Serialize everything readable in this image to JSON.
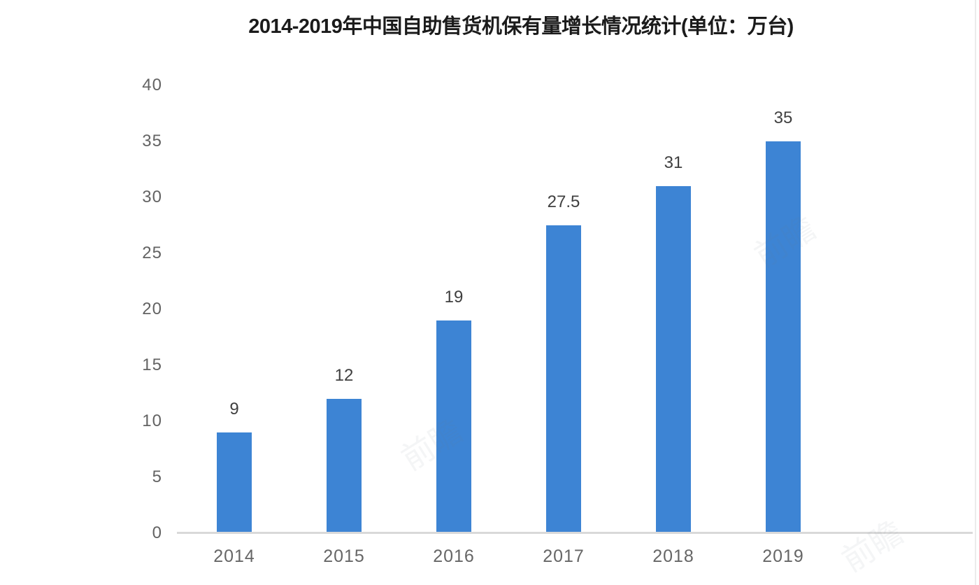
{
  "chart_data": {
    "type": "bar",
    "title": "2014-2019年中国自助售货机保有量增长情况统计(单位：万台)",
    "categories": [
      "2014",
      "2015",
      "2016",
      "2017",
      "2018",
      "2019"
    ],
    "values": [
      9,
      12,
      19,
      27.5,
      31,
      35
    ],
    "value_labels": [
      "9",
      "12",
      "19",
      "27.5",
      "31",
      "35"
    ],
    "yticks": [
      0,
      5,
      10,
      15,
      20,
      25,
      30,
      35,
      40
    ],
    "ylim": [
      0,
      40
    ],
    "xlabel": "",
    "ylabel": "",
    "grid": false,
    "legend": false,
    "bar_color": "#3d84d4",
    "axis_line_color": "#d9d9d9",
    "tick_label_color": "#636363",
    "value_label_color": "#3f3f3f",
    "title_color": "#1b1b1b"
  },
  "watermark": {
    "text": "前瞻"
  }
}
